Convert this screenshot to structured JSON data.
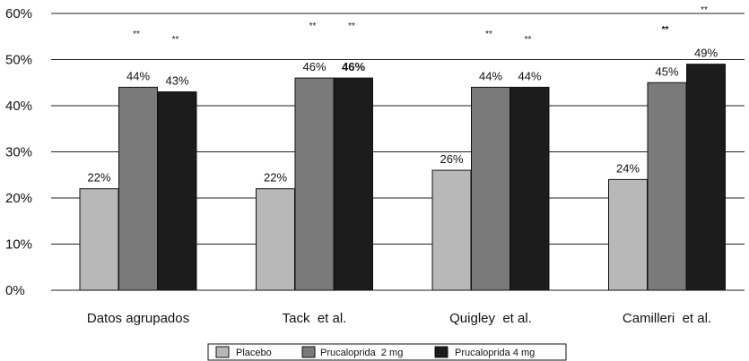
{
  "chart_data": {
    "type": "bar",
    "categories": [
      "Datos agrupados",
      "Tack  et al.",
      "Quigley  et al.",
      "Camilleri  et al."
    ],
    "series": [
      {
        "name": "Placebo",
        "color": "#b8b8b8",
        "values": [
          22,
          22,
          26,
          24
        ],
        "labels": [
          "22%",
          "22%",
          "26%",
          "24%"
        ],
        "stars": [
          "",
          "",
          "",
          ""
        ]
      },
      {
        "name": "Prucaloprida  2 mg",
        "color": "#7a7a7a",
        "values": [
          44,
          46,
          44,
          45
        ],
        "labels": [
          "44%",
          "46%",
          "44%",
          "45%"
        ],
        "stars": [
          "**",
          "**",
          "**",
          "**"
        ]
      },
      {
        "name": "Prucaloprida 4 mg",
        "color": "#1c1c1c",
        "values": [
          43,
          46,
          44,
          49
        ],
        "labels": [
          "43%",
          "46%",
          "44%",
          "49%"
        ],
        "stars": [
          "**",
          "**",
          "**",
          "**"
        ]
      }
    ],
    "bold_labels": [
      [
        false,
        false,
        false,
        false
      ],
      [
        false,
        false,
        false,
        false
      ],
      [
        false,
        true,
        false,
        false
      ]
    ],
    "bold_stars": [
      [
        false,
        false,
        false,
        false
      ],
      [
        false,
        false,
        false,
        true
      ],
      [
        false,
        false,
        false,
        false
      ]
    ],
    "ylim": [
      0,
      60
    ],
    "yticks": [
      0,
      10,
      20,
      30,
      40,
      50,
      60
    ],
    "ytick_labels": [
      "0%",
      "10%",
      "20%",
      "30%",
      "40%",
      "50%",
      "60%"
    ],
    "grid": "horizontal",
    "legend_position": "bottom-center",
    "title": "",
    "xlabel": "",
    "ylabel": ""
  }
}
